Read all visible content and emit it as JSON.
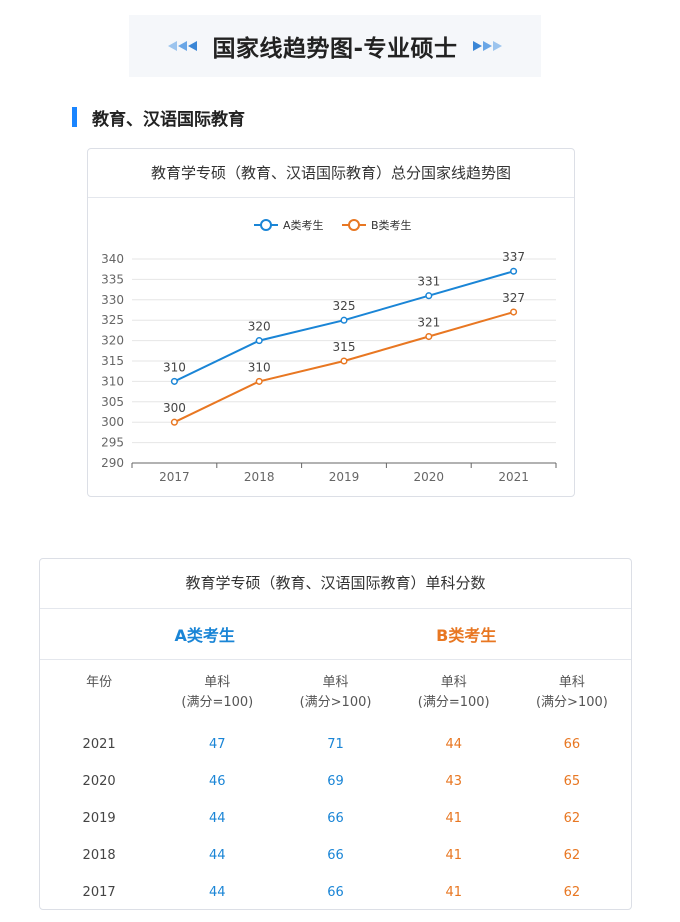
{
  "banner": {
    "title": "国家线趋势图-专业硕士"
  },
  "section": {
    "title": "教育、汉语国际教育"
  },
  "chart_data": {
    "type": "line",
    "title": "教育学专硕（教育、汉语国际教育）总分国家线趋势图",
    "categories": [
      "2017",
      "2018",
      "2019",
      "2020",
      "2021"
    ],
    "series": [
      {
        "name": "A类考生",
        "color": "#1a85d6",
        "values": [
          310,
          320,
          325,
          331,
          337
        ]
      },
      {
        "name": "B类考生",
        "color": "#e87722",
        "values": [
          300,
          310,
          315,
          321,
          327
        ]
      }
    ],
    "ylim": [
      290,
      340
    ],
    "yticks": [
      "290",
      "295",
      "300",
      "305",
      "310",
      "315",
      "320",
      "325",
      "330",
      "335",
      "340"
    ],
    "legend_position": "top",
    "grid": true,
    "data_labels": true
  },
  "table": {
    "title": "教育学专硕（教育、汉语国际教育）单科分数",
    "group_a": "A类考生",
    "group_b": "B类考生",
    "headers": [
      {
        "line1": "年份",
        "line2": ""
      },
      {
        "line1": "单科",
        "line2": "(满分=100)"
      },
      {
        "line1": "单科",
        "line2": "(满分>100)"
      },
      {
        "line1": "单科",
        "line2": "(满分=100)"
      },
      {
        "line1": "单科",
        "line2": "(满分>100)"
      }
    ],
    "rows": [
      [
        "2021",
        "47",
        "71",
        "44",
        "66"
      ],
      [
        "2020",
        "46",
        "69",
        "43",
        "65"
      ],
      [
        "2019",
        "44",
        "66",
        "41",
        "62"
      ],
      [
        "2018",
        "44",
        "66",
        "41",
        "62"
      ],
      [
        "2017",
        "44",
        "66",
        "41",
        "62"
      ]
    ]
  }
}
